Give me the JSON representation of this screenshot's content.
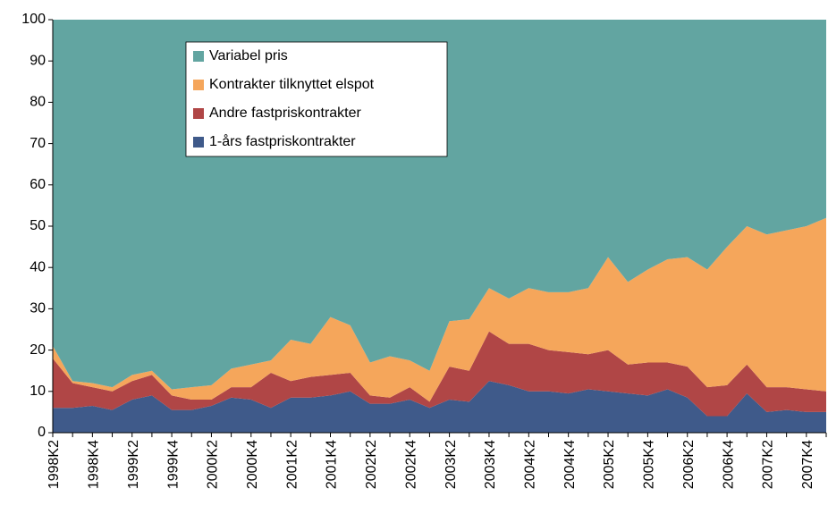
{
  "chart_data": {
    "type": "stacked_area",
    "categories": [
      "1998K2",
      null,
      "1998K4",
      null,
      "1999K2",
      null,
      "1999K4",
      null,
      "2000K2",
      null,
      "2000K4",
      null,
      "2001K2",
      null,
      "2001K4",
      null,
      "2002K2",
      null,
      "2002K4",
      null,
      "2003K2",
      null,
      "2003K4",
      null,
      "2004K2",
      null,
      "2004K4",
      null,
      "2005K2",
      null,
      "2005K4",
      null,
      "2006K2",
      null,
      "2006K4",
      null,
      "2007K2",
      null,
      "2007K4",
      null
    ],
    "series": [
      {
        "name": "1-års fastpriskontrakter",
        "color": "#3f5a8a",
        "values": [
          6,
          6,
          6.5,
          5.5,
          8,
          9,
          5.5,
          5.5,
          6.5,
          8.5,
          8,
          6,
          8.5,
          8.5,
          9,
          10,
          7,
          7,
          8,
          6,
          8,
          7.5,
          12.5,
          11.5,
          10,
          10,
          9.5,
          10.5,
          10,
          9.5,
          9,
          10.5,
          8.5,
          4,
          4,
          9.5,
          5,
          5.5,
          5,
          5
        ]
      },
      {
        "name": "Andre fastpriskontrakter",
        "color": "#b04646",
        "values": [
          12,
          6,
          4.5,
          4.5,
          4.5,
          5,
          3.5,
          2.5,
          1.5,
          2.5,
          3,
          8.5,
          4,
          5,
          5,
          4.5,
          2,
          1.5,
          3,
          1.5,
          8,
          7.5,
          12,
          10,
          11.5,
          10,
          10,
          8.5,
          10,
          7,
          8,
          6.5,
          7.5,
          7,
          7.5,
          7,
          6,
          5.5,
          5.5,
          5
        ]
      },
      {
        "name": "Kontrakter tilknyttet elspot",
        "color": "#f5a65b",
        "values": [
          3,
          0.5,
          1,
          1,
          1.5,
          1,
          1.5,
          3,
          3.5,
          4.5,
          5.5,
          3,
          10,
          8,
          14,
          11.5,
          8,
          10,
          6.5,
          7.5,
          11,
          12.5,
          10.5,
          11,
          13.5,
          14,
          14.5,
          16,
          22.5,
          20,
          22.5,
          25,
          26.5,
          28.5,
          33.5,
          33.5,
          37,
          38,
          39.5,
          42
        ]
      },
      {
        "name": "Variabel pris",
        "color": "#62a5a1",
        "values": [
          79,
          87.5,
          88,
          89,
          86,
          85,
          89.5,
          89,
          88.5,
          84.5,
          83.5,
          82.5,
          77.5,
          78.5,
          72,
          74,
          83,
          81.5,
          82.5,
          85,
          73,
          72.5,
          65,
          67.5,
          65,
          66,
          66,
          65,
          57.5,
          63.5,
          60.5,
          58,
          57.5,
          60.5,
          55,
          50,
          52,
          51,
          50,
          48
        ]
      }
    ],
    "ylim": [
      0,
      100
    ],
    "yticks": [
      0,
      10,
      20,
      30,
      40,
      50,
      60,
      70,
      80,
      90,
      100
    ],
    "legend": "upper left"
  }
}
